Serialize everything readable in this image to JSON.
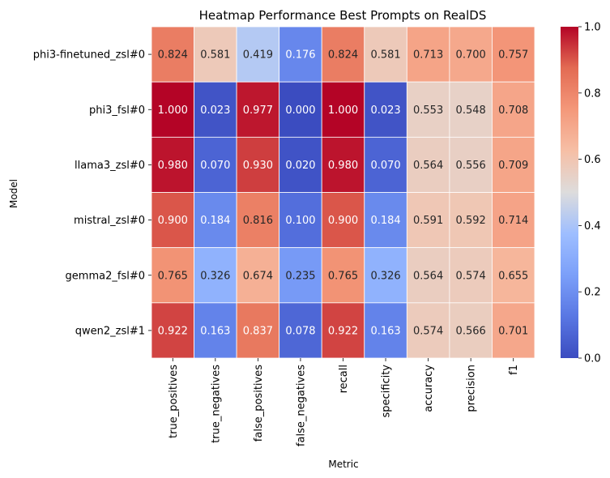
{
  "chart_data": {
    "type": "heatmap",
    "title": "Heatmap Performance Best Prompts on RealDS",
    "xlabel": "Metric",
    "ylabel": "Model",
    "columns": [
      "true_positives",
      "true_negatives",
      "false_positives",
      "false_negatives",
      "recall",
      "specificity",
      "accuracy",
      "precision",
      "f1"
    ],
    "rows": [
      "phi3-finetuned_zsl#0",
      "phi3_fsl#0",
      "llama3_zsl#0",
      "mistral_zsl#0",
      "gemma2_fsl#0",
      "qwen2_zsl#1"
    ],
    "values": [
      [
        0.824,
        0.581,
        0.419,
        0.176,
        0.824,
        0.581,
        0.713,
        0.7,
        0.757
      ],
      [
        1.0,
        0.023,
        0.977,
        0.0,
        1.0,
        0.023,
        0.553,
        0.548,
        0.708
      ],
      [
        0.98,
        0.07,
        0.93,
        0.02,
        0.98,
        0.07,
        0.564,
        0.556,
        0.709
      ],
      [
        0.9,
        0.184,
        0.816,
        0.1,
        0.9,
        0.184,
        0.591,
        0.592,
        0.714
      ],
      [
        0.765,
        0.326,
        0.674,
        0.235,
        0.765,
        0.326,
        0.564,
        0.574,
        0.655
      ],
      [
        0.922,
        0.163,
        0.837,
        0.078,
        0.922,
        0.163,
        0.574,
        0.566,
        0.701
      ]
    ],
    "colormap": "coolwarm",
    "vmin": 0.0,
    "vmax": 1.0,
    "colorbar_ticks": [
      "0.0",
      "0.2",
      "0.4",
      "0.6",
      "0.8",
      "1.0"
    ],
    "annotations": true,
    "annotation_format": "3 decimals"
  }
}
